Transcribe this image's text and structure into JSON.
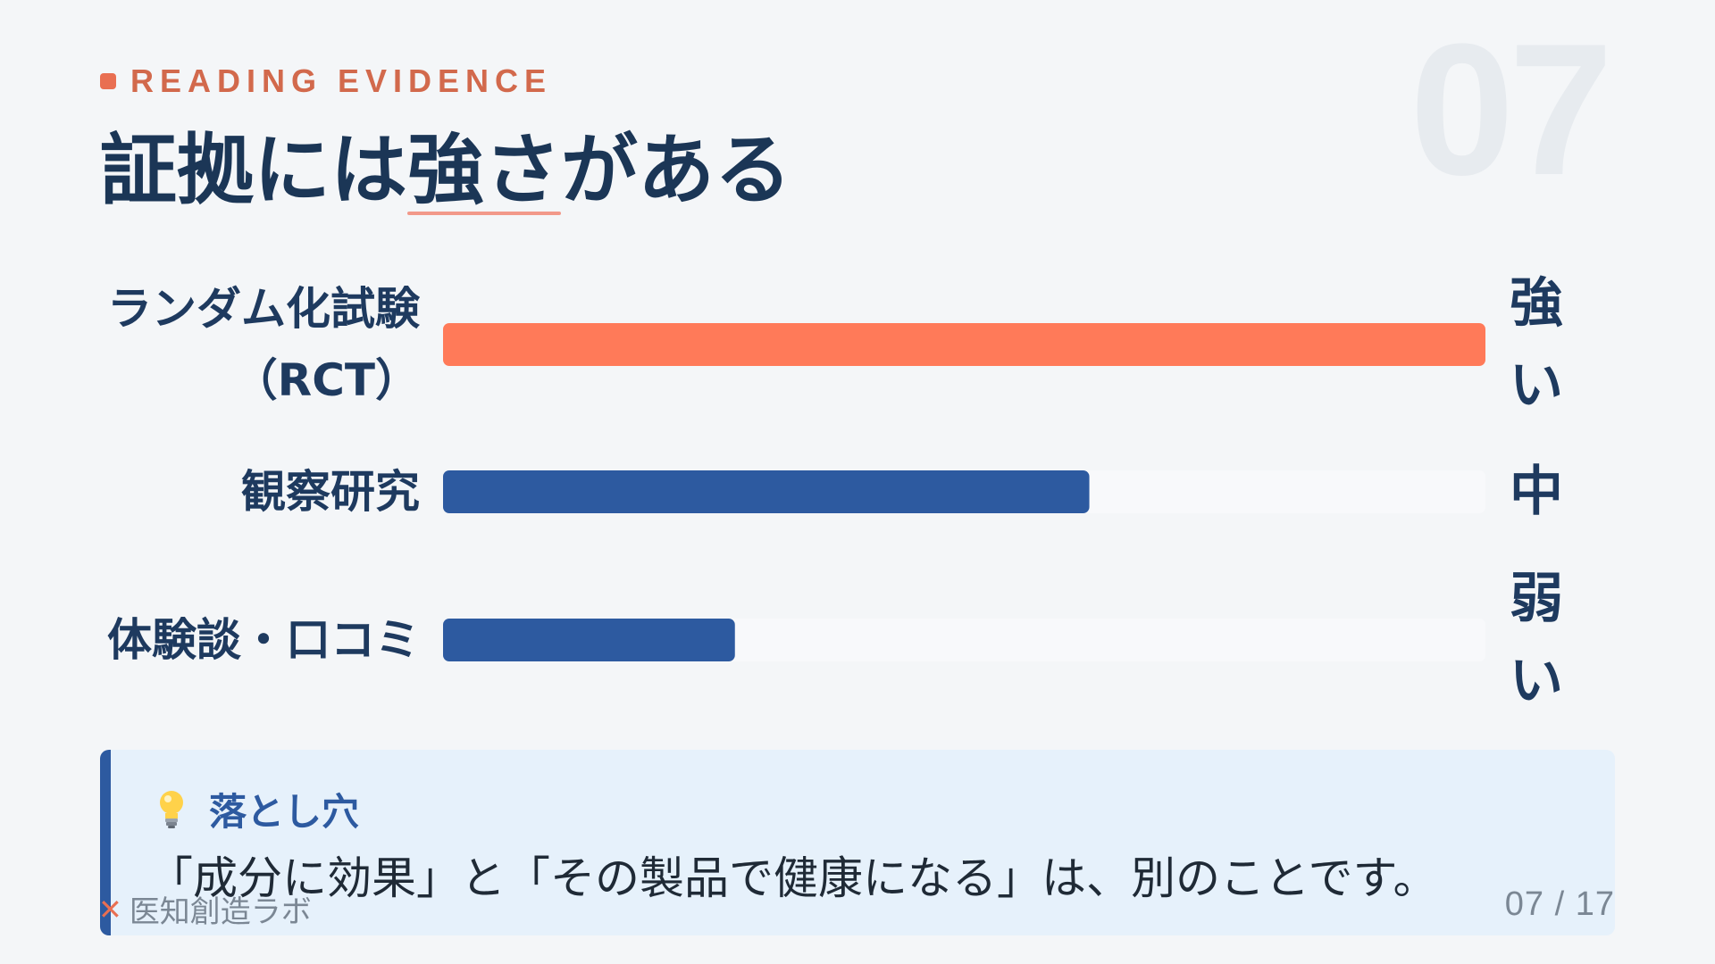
{
  "eyebrow": "READING EVIDENCE",
  "slide_number": "07",
  "title": {
    "before": "証拠には",
    "highlight": "強さ",
    "after": "がある"
  },
  "chart_data": {
    "type": "bar",
    "orientation": "horizontal",
    "categories": [
      "ランダム化試験（RCT）",
      "観察研究",
      "体験談・口コミ"
    ],
    "category_lines": [
      [
        "ランダム化試験",
        "（RCT）"
      ],
      [
        "観察研究"
      ],
      [
        "体験談・口コミ"
      ]
    ],
    "values": [
      1.0,
      0.62,
      0.28
    ],
    "strength_labels": [
      "強い",
      "中",
      "弱い"
    ],
    "xlim": [
      0,
      1
    ],
    "title": "",
    "xlabel": "",
    "ylabel": "",
    "grid": false,
    "colors": {
      "highlight": "#ff7a59",
      "normal": "#2d5aa0",
      "track": "#f8f9fb"
    }
  },
  "callout": {
    "icon": "lightbulb-icon",
    "label": "落とし穴",
    "text": "「成分に効果」と「その製品で健康になる」は、別のことです。"
  },
  "footer": {
    "brand_icon": "x-mark-icon",
    "brand": "医知創造ラボ",
    "pager": "07 / 17"
  },
  "colors": {
    "accent": "#e96f52",
    "primary": "#2d5aa0",
    "title": "#1b3656",
    "background": "#f4f6f8"
  }
}
